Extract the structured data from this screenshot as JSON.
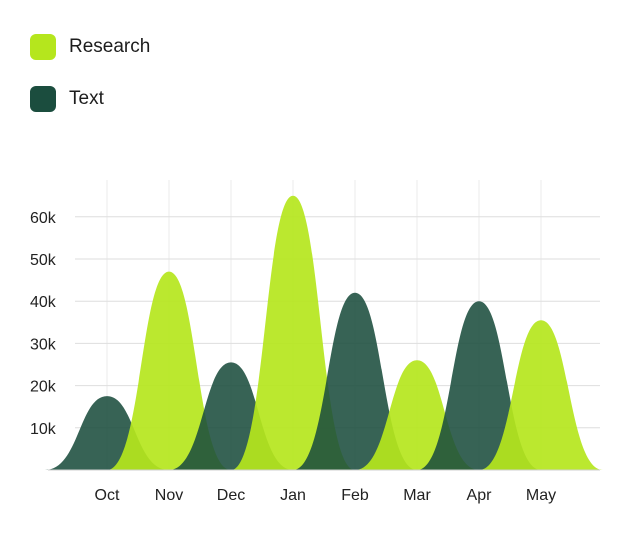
{
  "legend": {
    "items": [
      {
        "label": "Research",
        "color": "#b5e61d"
      },
      {
        "label": "Text",
        "color": "#1b4d3e"
      }
    ]
  },
  "chart_data": {
    "type": "area",
    "categories": [
      "Oct",
      "Nov",
      "Dec",
      "Jan",
      "Feb",
      "Mar",
      "Apr",
      "May"
    ],
    "series": [
      {
        "name": "Research",
        "color": "#b5e61d",
        "values": [
          null,
          47000,
          null,
          65000,
          null,
          26000,
          null,
          35500
        ]
      },
      {
        "name": "Text",
        "color": "#1b4d3e",
        "values": [
          17500,
          null,
          25500,
          null,
          42000,
          null,
          40000,
          null
        ]
      }
    ],
    "yticks": [
      "10k",
      "20k",
      "30k",
      "40k",
      "50k",
      "60k"
    ],
    "ylim": [
      0,
      70000
    ],
    "grid": true,
    "legend_position": "top-left"
  }
}
